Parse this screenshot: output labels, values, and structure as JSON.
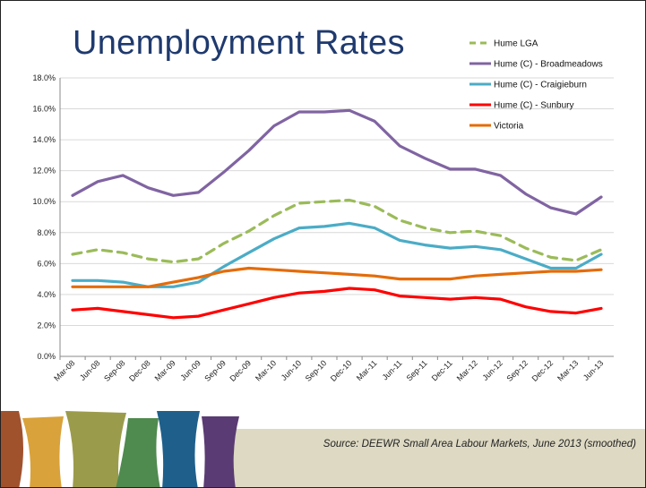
{
  "chart_data": {
    "type": "line",
    "title": "Unemployment Rates",
    "categories": [
      "Mar-08",
      "Jun-08",
      "Sep-08",
      "Dec-08",
      "Mar-09",
      "Jun-09",
      "Sep-09",
      "Dec-09",
      "Mar-10",
      "Jun-10",
      "Sep-10",
      "Dec-10",
      "Mar-11",
      "Jun-11",
      "Sep-11",
      "Dec-11",
      "Mar-12",
      "Jun-12",
      "Sep-12",
      "Dec-12",
      "Mar-13",
      "Jun-13"
    ],
    "y_ticks": [
      "0.0%",
      "2.0%",
      "4.0%",
      "6.0%",
      "8.0%",
      "10.0%",
      "12.0%",
      "14.0%",
      "16.0%",
      "18.0%"
    ],
    "ylim": [
      0,
      18
    ],
    "ylabel": "",
    "xlabel": "",
    "grid": true,
    "legend_position": "top-right",
    "series": [
      {
        "name": "Hume LGA",
        "color": "#9bbb59",
        "dashed": true,
        "values": [
          6.6,
          6.9,
          6.7,
          6.3,
          6.1,
          6.3,
          7.3,
          8.1,
          9.1,
          9.9,
          10.0,
          10.1,
          9.7,
          8.8,
          8.3,
          8.0,
          8.1,
          7.8,
          7.0,
          6.4,
          6.2,
          6.9
        ]
      },
      {
        "name": "Hume (C) - Broadmeadows",
        "color": "#8064a2",
        "dashed": false,
        "values": [
          10.4,
          11.3,
          11.7,
          10.9,
          10.4,
          10.6,
          11.9,
          13.3,
          14.9,
          15.8,
          15.8,
          15.9,
          15.2,
          13.6,
          12.8,
          12.1,
          12.1,
          11.7,
          10.5,
          9.6,
          9.2,
          10.3
        ]
      },
      {
        "name": "Hume (C) - Craigieburn",
        "color": "#4bacc6",
        "dashed": false,
        "values": [
          4.9,
          4.9,
          4.8,
          4.5,
          4.5,
          4.8,
          5.8,
          6.7,
          7.6,
          8.3,
          8.4,
          8.6,
          8.3,
          7.5,
          7.2,
          7.0,
          7.1,
          6.9,
          6.3,
          5.7,
          5.7,
          6.6
        ]
      },
      {
        "name": "Hume (C) - Sunbury",
        "color": "#ff0000",
        "dashed": false,
        "values": [
          3.0,
          3.1,
          2.9,
          2.7,
          2.5,
          2.6,
          3.0,
          3.4,
          3.8,
          4.1,
          4.2,
          4.4,
          4.3,
          3.9,
          3.8,
          3.7,
          3.8,
          3.7,
          3.2,
          2.9,
          2.8,
          3.1
        ]
      },
      {
        "name": "Victoria",
        "color": "#e46c0a",
        "dashed": false,
        "values": [
          4.5,
          4.5,
          4.5,
          4.5,
          4.8,
          5.1,
          5.5,
          5.7,
          5.6,
          5.5,
          5.4,
          5.3,
          5.2,
          5.0,
          5.0,
          5.0,
          5.2,
          5.3,
          5.4,
          5.5,
          5.5,
          5.6
        ]
      }
    ]
  },
  "footer": {
    "source": "Source:  DEEWR Small Area Labour Markets, June 2013 (smoothed)"
  }
}
